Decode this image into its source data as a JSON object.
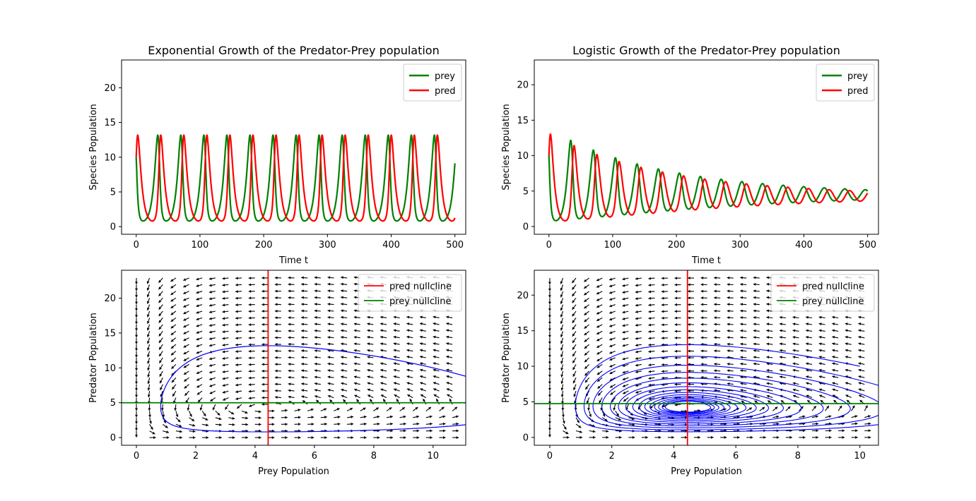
{
  "chart_data": [
    {
      "type": "line",
      "title": "Exponential Growth of the Predator-Prey population",
      "xlabel": "Time t",
      "ylabel": "Species Population",
      "xlim": [
        -23,
        517
      ],
      "ylim": [
        -1.1,
        24
      ],
      "xticks": [
        0,
        100,
        200,
        300,
        400,
        500
      ],
      "yticks": [
        0,
        5,
        10,
        15,
        20
      ],
      "legend": "top-right",
      "model": "exponential",
      "series": [
        {
          "name": "prey",
          "color": "#008000"
        },
        {
          "name": "pred",
          "color": "#ff0000"
        }
      ],
      "initial": {
        "prey": 10,
        "pred": 10
      },
      "t_max": 500
    },
    {
      "type": "line",
      "title": "Logistic Growth of the Predator-Prey population",
      "xlabel": "Time t",
      "ylabel": "Species Population",
      "xlim": [
        -23,
        517
      ],
      "ylim": [
        -1.1,
        23.5
      ],
      "xticks": [
        0,
        100,
        200,
        300,
        400,
        500
      ],
      "yticks": [
        0,
        5,
        10,
        15,
        20
      ],
      "legend": "top-right",
      "model": "logistic",
      "series": [
        {
          "name": "prey",
          "color": "#008000"
        },
        {
          "name": "pred",
          "color": "#ff0000"
        }
      ],
      "initial": {
        "prey": 10,
        "pred": 10
      },
      "t_max": 500
    },
    {
      "type": "line",
      "title": "",
      "xlabel": "Prey Population",
      "ylabel": "Predator Population",
      "xlim": [
        -0.5,
        11.1
      ],
      "ylim": [
        -1.1,
        24
      ],
      "xticks": [
        0,
        2,
        4,
        6,
        8,
        10
      ],
      "yticks": [
        0,
        5,
        10,
        15,
        20
      ],
      "legend": "top-right",
      "model": "exponential",
      "nullclines": [
        {
          "name": "pred nullcline",
          "orientation": "vertical",
          "value": 4.44,
          "color": "#ff0000"
        },
        {
          "name": "prey nullcline",
          "orientation": "horizontal",
          "value": 5.0,
          "color": "#008000"
        }
      ],
      "trajectory_color": "#0000ff",
      "quiver": {
        "x": [
          0,
          10.65
        ],
        "y": [
          0,
          22.9
        ],
        "n": 25
      }
    },
    {
      "type": "line",
      "title": "",
      "xlabel": "Prey Population",
      "ylabel": "Predator Population",
      "xlim": [
        -0.5,
        10.6
      ],
      "ylim": [
        -1.1,
        23.5
      ],
      "xticks": [
        0,
        2,
        4,
        6,
        8,
        10
      ],
      "yticks": [
        0,
        5,
        10,
        15,
        20
      ],
      "legend": "top-right",
      "model": "logistic",
      "nullclines": [
        {
          "name": "pred nullcline",
          "orientation": "vertical",
          "value": 4.44,
          "color": "#ff0000"
        },
        {
          "name": "prey nullcline",
          "orientation": "horizontal",
          "value": 4.75,
          "color": "#008000"
        }
      ],
      "trajectory_color": "#0000ff",
      "quiver": {
        "x": [
          0,
          10.15
        ],
        "y": [
          0,
          22.4
        ],
        "n": 25
      }
    }
  ]
}
